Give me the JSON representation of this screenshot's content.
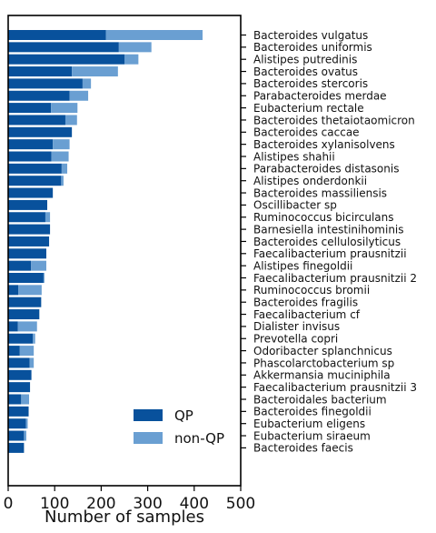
{
  "chart_data": {
    "type": "bar",
    "orientation": "horizontal",
    "stacked": true,
    "xlabel": "Number of samples",
    "ylabel": "",
    "xlim": [
      0,
      500
    ],
    "xticks": [
      0,
      100,
      200,
      300,
      400,
      500
    ],
    "ytick_side": "right",
    "grid": false,
    "legend_position": "lower-right",
    "categories": [
      "Bacteroides vulgatus",
      "Bacteroides uniformis",
      "Alistipes putredinis",
      "Bacteroides ovatus",
      "Bacteroides stercoris",
      "Parabacteroides merdae",
      "Eubacterium rectale",
      "Bacteroides thetaiotaomicron",
      "Bacteroides caccae",
      "Bacteroides xylanisolvens",
      "Alistipes shahii",
      "Parabacteroides distasonis",
      "Alistipes onderdonkii",
      "Bacteroides massiliensis",
      "Oscillibacter sp",
      "Ruminococcus bicirculans",
      "Barnesiella intestinihominis",
      "Bacteroides cellulosilyticus",
      "Faecalibacterium prausnitzii",
      "Alistipes finegoldii",
      "Faecalibacterium prausnitzii 2",
      "Ruminococcus bromii",
      "Bacteroides fragilis",
      "Faecalibacterium cf",
      "Dialister invisus",
      "Prevotella copri",
      "Odoribacter splanchnicus",
      "Phascolarctobacterium sp",
      "Akkermansia muciniphila",
      "Faecalibacterium prausnitzii 3",
      "Bacteroidales bacterium",
      "Bacteroides finegoldii",
      "Eubacterium eligens",
      "Eubacterium siraeum",
      "Bacteroides faecis"
    ],
    "series": [
      {
        "name": "QP",
        "color": "#08519c",
        "values": [
          210,
          238,
          250,
          137,
          160,
          132,
          92,
          123,
          137,
          96,
          93,
          115,
          114,
          96,
          84,
          80,
          90,
          88,
          82,
          49,
          76,
          22,
          71,
          67,
          21,
          53,
          25,
          46,
          50,
          47,
          28,
          44,
          38,
          34,
          34
        ]
      },
      {
        "name": "non-QP",
        "color": "#6a9fd2",
        "values": [
          208,
          70,
          30,
          99,
          18,
          40,
          57,
          25,
          0,
          36,
          37,
          12,
          5,
          0,
          0,
          10,
          0,
          0,
          0,
          33,
          2,
          50,
          0,
          0,
          41,
          5,
          30,
          9,
          0,
          0,
          17,
          0,
          4,
          5,
          0
        ]
      }
    ]
  }
}
